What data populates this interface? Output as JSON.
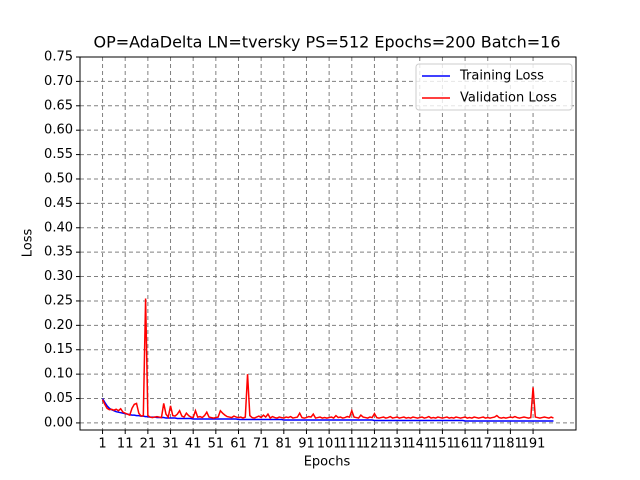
{
  "chart_data": {
    "type": "line",
    "title": "OP=AdaDelta LN=tversky PS=512 Epochs=200 Batch=16",
    "x_label": "Epochs",
    "y_label": "Loss",
    "x": [
      1,
      2,
      3,
      4,
      5,
      6,
      7,
      8,
      9,
      10,
      11,
      12,
      13,
      14,
      15,
      16,
      17,
      18,
      19,
      20,
      21,
      22,
      23,
      24,
      25,
      26,
      27,
      28,
      29,
      30,
      31,
      32,
      33,
      34,
      35,
      36,
      37,
      38,
      39,
      40,
      41,
      42,
      43,
      44,
      45,
      46,
      47,
      48,
      49,
      50,
      51,
      52,
      53,
      54,
      55,
      56,
      57,
      58,
      59,
      60,
      61,
      62,
      63,
      64,
      65,
      66,
      67,
      68,
      69,
      70,
      71,
      72,
      73,
      74,
      75,
      76,
      77,
      78,
      79,
      80,
      81,
      82,
      83,
      84,
      85,
      86,
      87,
      88,
      89,
      90,
      91,
      92,
      93,
      94,
      95,
      96,
      97,
      98,
      99,
      100,
      101,
      102,
      103,
      104,
      105,
      106,
      107,
      108,
      109,
      110,
      111,
      112,
      113,
      114,
      115,
      116,
      117,
      118,
      119,
      120,
      121,
      122,
      123,
      124,
      125,
      126,
      127,
      128,
      129,
      130,
      131,
      132,
      133,
      134,
      135,
      136,
      137,
      138,
      139,
      140,
      141,
      142,
      143,
      144,
      145,
      146,
      147,
      148,
      149,
      150,
      151,
      152,
      153,
      154,
      155,
      156,
      157,
      158,
      159,
      160,
      161,
      162,
      163,
      164,
      165,
      166,
      167,
      168,
      169,
      170,
      171,
      172,
      173,
      174,
      175,
      176,
      177,
      178,
      179,
      180,
      181,
      182,
      183,
      184,
      185,
      186,
      187,
      188,
      189,
      190,
      191,
      192,
      193,
      194,
      195,
      196,
      197,
      198,
      199,
      200
    ],
    "series": [
      {
        "name": "Training Loss",
        "color": "#0000ff",
        "values": [
          0.05,
          0.042,
          0.035,
          0.03,
          0.027,
          0.025,
          0.023,
          0.022,
          0.021,
          0.02,
          0.019,
          0.018,
          0.017,
          0.016,
          0.016,
          0.015,
          0.015,
          0.014,
          0.014,
          0.013,
          0.013,
          0.012,
          0.012,
          0.012,
          0.011,
          0.011,
          0.011,
          0.011,
          0.01,
          0.01,
          0.01,
          0.01,
          0.01,
          0.009,
          0.009,
          0.009,
          0.009,
          0.009,
          0.009,
          0.009,
          0.008,
          0.008,
          0.008,
          0.008,
          0.008,
          0.008,
          0.008,
          0.008,
          0.008,
          0.008,
          0.008,
          0.008,
          0.008,
          0.008,
          0.008,
          0.008,
          0.008,
          0.008,
          0.008,
          0.008,
          0.007,
          0.007,
          0.007,
          0.007,
          0.007,
          0.007,
          0.007,
          0.007,
          0.007,
          0.007,
          0.007,
          0.007,
          0.007,
          0.007,
          0.007,
          0.007,
          0.007,
          0.007,
          0.007,
          0.007,
          0.006,
          0.006,
          0.006,
          0.006,
          0.006,
          0.006,
          0.006,
          0.006,
          0.006,
          0.006,
          0.006,
          0.006,
          0.006,
          0.006,
          0.006,
          0.006,
          0.006,
          0.006,
          0.006,
          0.006,
          0.006,
          0.006,
          0.006,
          0.006,
          0.006,
          0.006,
          0.006,
          0.006,
          0.006,
          0.006,
          0.006,
          0.006,
          0.006,
          0.006,
          0.006,
          0.006,
          0.006,
          0.006,
          0.006,
          0.006,
          0.005,
          0.005,
          0.005,
          0.005,
          0.005,
          0.005,
          0.005,
          0.005,
          0.005,
          0.005,
          0.005,
          0.005,
          0.005,
          0.005,
          0.005,
          0.005,
          0.005,
          0.005,
          0.005,
          0.005,
          0.005,
          0.005,
          0.005,
          0.005,
          0.005,
          0.005,
          0.005,
          0.005,
          0.005,
          0.005,
          0.005,
          0.005,
          0.005,
          0.005,
          0.005,
          0.005,
          0.005,
          0.005,
          0.005,
          0.005,
          0.004,
          0.004,
          0.004,
          0.004,
          0.004,
          0.004,
          0.004,
          0.004,
          0.004,
          0.004,
          0.004,
          0.004,
          0.004,
          0.004,
          0.004,
          0.004,
          0.004,
          0.004,
          0.004,
          0.004,
          0.004,
          0.004,
          0.004,
          0.004,
          0.004,
          0.004,
          0.004,
          0.004,
          0.004,
          0.004,
          0.004,
          0.004,
          0.004,
          0.004,
          0.004,
          0.004,
          0.004,
          0.004,
          0.004,
          0.004
        ]
      },
      {
        "name": "Validation Loss",
        "color": "#ff0000",
        "values": [
          0.048,
          0.038,
          0.03,
          0.027,
          0.028,
          0.026,
          0.028,
          0.025,
          0.029,
          0.022,
          0.02,
          0.018,
          0.016,
          0.03,
          0.038,
          0.04,
          0.02,
          0.014,
          0.015,
          0.255,
          0.015,
          0.012,
          0.011,
          0.012,
          0.013,
          0.012,
          0.011,
          0.04,
          0.018,
          0.012,
          0.035,
          0.015,
          0.014,
          0.018,
          0.025,
          0.014,
          0.012,
          0.02,
          0.015,
          0.012,
          0.011,
          0.025,
          0.012,
          0.013,
          0.011,
          0.015,
          0.022,
          0.012,
          0.011,
          0.01,
          0.011,
          0.012,
          0.025,
          0.02,
          0.016,
          0.013,
          0.012,
          0.011,
          0.014,
          0.012,
          0.011,
          0.012,
          0.01,
          0.012,
          0.1,
          0.015,
          0.011,
          0.01,
          0.012,
          0.014,
          0.011,
          0.016,
          0.012,
          0.018,
          0.01,
          0.013,
          0.011,
          0.01,
          0.012,
          0.011,
          0.01,
          0.012,
          0.011,
          0.013,
          0.01,
          0.011,
          0.012,
          0.02,
          0.011,
          0.01,
          0.011,
          0.013,
          0.012,
          0.018,
          0.01,
          0.011,
          0.012,
          0.01,
          0.011,
          0.01,
          0.011,
          0.012,
          0.01,
          0.015,
          0.011,
          0.012,
          0.01,
          0.011,
          0.013,
          0.012,
          0.025,
          0.012,
          0.011,
          0.01,
          0.016,
          0.012,
          0.011,
          0.01,
          0.012,
          0.011,
          0.019,
          0.011,
          0.01,
          0.011,
          0.012,
          0.01,
          0.011,
          0.013,
          0.01,
          0.011,
          0.012,
          0.01,
          0.011,
          0.012,
          0.01,
          0.011,
          0.01,
          0.012,
          0.011,
          0.01,
          0.011,
          0.012,
          0.01,
          0.011,
          0.013,
          0.01,
          0.011,
          0.01,
          0.012,
          0.011,
          0.01,
          0.011,
          0.012,
          0.01,
          0.011,
          0.01,
          0.012,
          0.011,
          0.01,
          0.011,
          0.012,
          0.01,
          0.011,
          0.01,
          0.012,
          0.011,
          0.01,
          0.011,
          0.012,
          0.01,
          0.011,
          0.01,
          0.011,
          0.012,
          0.015,
          0.011,
          0.01,
          0.011,
          0.01,
          0.011,
          0.012,
          0.011,
          0.013,
          0.011,
          0.01,
          0.011,
          0.012,
          0.011,
          0.01,
          0.011,
          0.073,
          0.012,
          0.011,
          0.01,
          0.011,
          0.012,
          0.011,
          0.01,
          0.012,
          0.01
        ]
      }
    ],
    "xlim": [
      -8.95,
      209.95
    ],
    "xticks": [
      1,
      11,
      21,
      31,
      41,
      51,
      61,
      71,
      81,
      91,
      101,
      111,
      121,
      131,
      141,
      151,
      161,
      171,
      181,
      191
    ],
    "ylim": [
      -0.0145,
      0.75
    ],
    "yticks": [
      {
        "value": 0,
        "label": "0.00"
      },
      {
        "value": 0.05,
        "label": "0.05"
      },
      {
        "value": 0.1,
        "label": "0.10"
      },
      {
        "value": 0.15,
        "label": "0.15"
      },
      {
        "value": 0.2,
        "label": "0.20"
      },
      {
        "value": 0.25,
        "label": "0.25"
      },
      {
        "value": 0.3,
        "label": "0.30"
      },
      {
        "value": 0.35,
        "label": "0.35"
      },
      {
        "value": 0.4,
        "label": "0.40"
      },
      {
        "value": 0.45,
        "label": "0.45"
      },
      {
        "value": 0.5,
        "label": "0.50"
      },
      {
        "value": 0.55,
        "label": "0.55"
      },
      {
        "value": 0.6,
        "label": "0.60"
      },
      {
        "value": 0.65,
        "label": "0.65"
      },
      {
        "value": 0.7,
        "label": "0.70"
      },
      {
        "value": 0.75,
        "label": "0.75"
      }
    ],
    "grid": true,
    "legend": "upper right"
  }
}
